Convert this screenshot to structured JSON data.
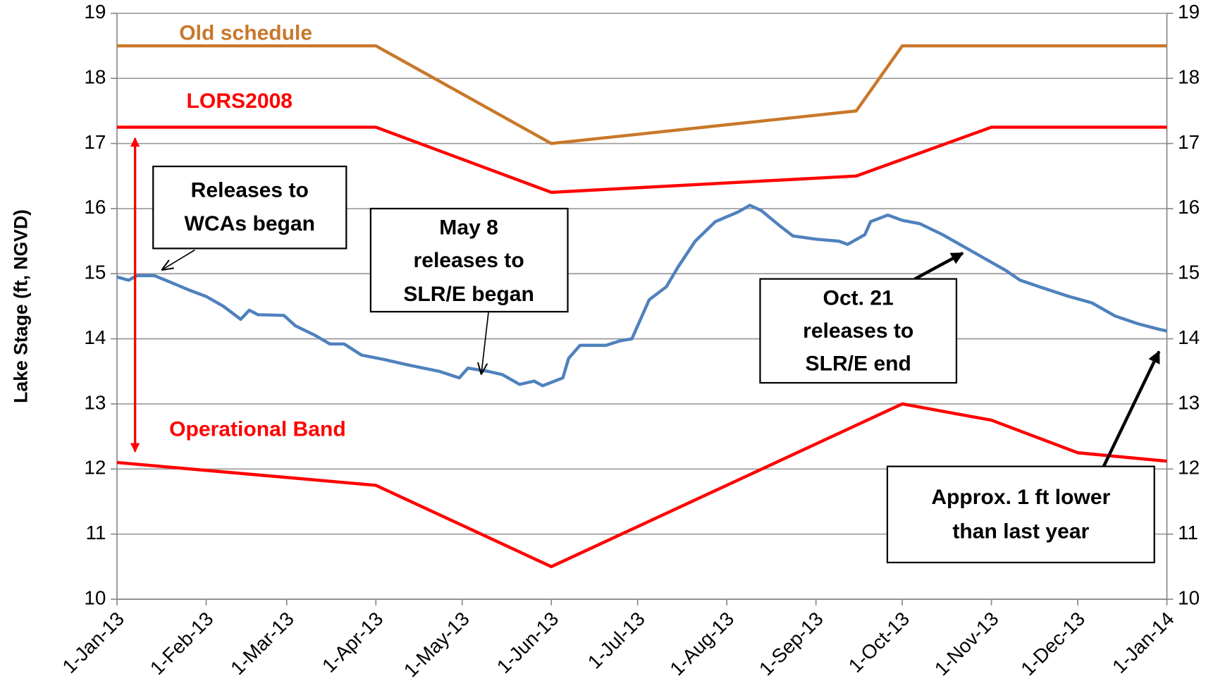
{
  "chart_data": {
    "type": "line",
    "y_label": "Lake Stage (ft, NGVD)",
    "xlim": [
      "2013-01-01",
      "2014-01-01"
    ],
    "xticks": [
      {
        "value": "2013-01-01",
        "label": "1-Jan-13"
      },
      {
        "value": "2013-02-01",
        "label": "1-Feb-13"
      },
      {
        "value": "2013-03-01",
        "label": "1-Mar-13"
      },
      {
        "value": "2013-04-01",
        "label": "1-Apr-13"
      },
      {
        "value": "2013-05-01",
        "label": "1-May-13"
      },
      {
        "value": "2013-06-01",
        "label": "1-Jun-13"
      },
      {
        "value": "2013-07-01",
        "label": "1-Jul-13"
      },
      {
        "value": "2013-08-01",
        "label": "1-Aug-13"
      },
      {
        "value": "2013-09-01",
        "label": "1-Sep-13"
      },
      {
        "value": "2013-10-01",
        "label": "1-Oct-13"
      },
      {
        "value": "2013-11-01",
        "label": "1-Nov-13"
      },
      {
        "value": "2013-12-01",
        "label": "1-Dec-13"
      },
      {
        "value": "2014-01-01",
        "label": "1-Jan-14"
      }
    ],
    "ylim": [
      10,
      19
    ],
    "yticks": [
      10,
      11,
      12,
      13,
      14,
      15,
      16,
      17,
      18,
      19
    ],
    "y2lim": [
      10,
      19
    ],
    "y2ticks": [
      10,
      11,
      12,
      13,
      14,
      15,
      16,
      17,
      18,
      19
    ],
    "grid": true,
    "series": [
      {
        "name": "Old schedule",
        "color": "#c8782a",
        "x": [
          "2013-01-01",
          "2013-04-01",
          "2013-06-01",
          "2013-09-15",
          "2013-10-01",
          "2014-01-01"
        ],
        "values": [
          18.5,
          18.5,
          17.0,
          17.5,
          18.5,
          18.5
        ]
      },
      {
        "name": "LORS2008",
        "color": "#ff0000",
        "x": [
          "2013-01-01",
          "2013-04-01",
          "2013-06-01",
          "2013-09-15",
          "2013-11-01",
          "2014-01-01"
        ],
        "values": [
          17.25,
          17.25,
          16.25,
          16.5,
          17.25,
          17.25
        ]
      },
      {
        "color": "#ff0000",
        "x": [
          "2013-01-01",
          "2013-04-01",
          "2013-06-01",
          "2013-10-01",
          "2013-11-01",
          "2013-12-01",
          "2014-01-01"
        ],
        "values": [
          12.1,
          11.75,
          10.5,
          13.0,
          12.75,
          12.25,
          12.12
        ]
      },
      {
        "color": "#4f81bd",
        "x": [
          "2013-01-01",
          "2013-01-05",
          "2013-01-08",
          "2013-01-14",
          "2013-01-19",
          "2013-01-26",
          "2013-02-01",
          "2013-02-07",
          "2013-02-13",
          "2013-02-16",
          "2013-02-19",
          "2013-02-28",
          "2013-03-04",
          "2013-03-11",
          "2013-03-16",
          "2013-03-21",
          "2013-03-27",
          "2013-04-04",
          "2013-04-12",
          "2013-04-23",
          "2013-04-30",
          "2013-05-03",
          "2013-05-10",
          "2013-05-15",
          "2013-05-21",
          "2013-05-26",
          "2013-05-29",
          "2013-06-05",
          "2013-06-07",
          "2013-06-11",
          "2013-06-20",
          "2013-06-25",
          "2013-06-29",
          "2013-07-05",
          "2013-07-11",
          "2013-07-15",
          "2013-07-21",
          "2013-07-28",
          "2013-08-05",
          "2013-08-09",
          "2013-08-13",
          "2013-08-19",
          "2013-08-24",
          "2013-09-01",
          "2013-09-09",
          "2013-09-12",
          "2013-09-18",
          "2013-09-20",
          "2013-09-26",
          "2013-10-01",
          "2013-10-07",
          "2013-10-15",
          "2013-10-23",
          "2013-10-31",
          "2013-11-06",
          "2013-11-11",
          "2013-11-19",
          "2013-11-28",
          "2013-12-06",
          "2013-12-14",
          "2013-12-22",
          "2013-12-29",
          "2014-01-01"
        ],
        "values": [
          14.95,
          14.9,
          14.97,
          14.97,
          14.88,
          14.75,
          14.65,
          14.5,
          14.3,
          14.44,
          14.37,
          14.36,
          14.2,
          14.05,
          13.92,
          13.92,
          13.75,
          13.68,
          13.6,
          13.5,
          13.4,
          13.55,
          13.5,
          13.45,
          13.3,
          13.35,
          13.28,
          13.4,
          13.7,
          13.9,
          13.9,
          13.97,
          14.0,
          14.6,
          14.8,
          15.1,
          15.5,
          15.8,
          15.95,
          16.05,
          15.97,
          15.75,
          15.58,
          15.53,
          15.5,
          15.45,
          15.6,
          15.8,
          15.9,
          15.82,
          15.77,
          15.6,
          15.4,
          15.2,
          15.05,
          14.9,
          14.78,
          14.65,
          14.55,
          14.35,
          14.23,
          14.15,
          14.12
        ]
      }
    ],
    "annotations": [
      {
        "lines": [
          "Releases to",
          "WCAs began"
        ]
      },
      {
        "lines": [
          "May 8",
          "releases to",
          "SLR/E began"
        ]
      },
      {
        "lines": [
          "Oct. 21",
          "releases to",
          "SLR/E end"
        ]
      },
      {
        "lines": [
          "Approx. 1 ft lower",
          "than last year"
        ]
      },
      {
        "lines": [
          "Operational Band"
        ]
      }
    ]
  }
}
